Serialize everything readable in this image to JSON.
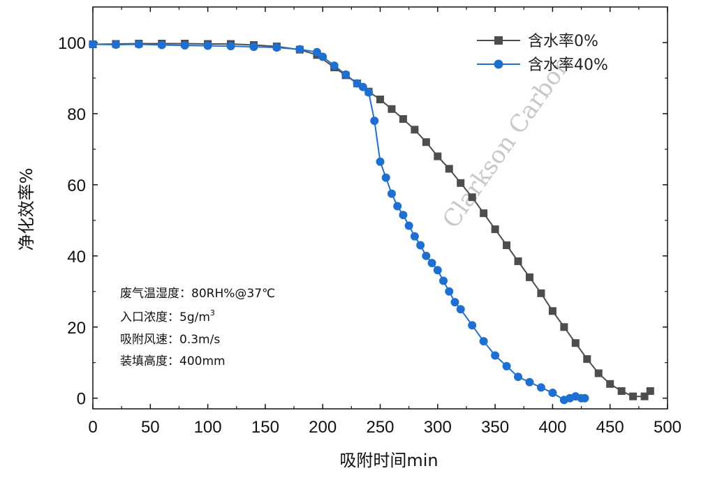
{
  "chart_data": {
    "type": "scatter",
    "title": "",
    "xlabel": "吸附时间min",
    "ylabel": "净化效率%",
    "xlim": [
      0,
      500
    ],
    "ylim": [
      -3,
      110
    ],
    "xticks": [
      "0",
      "50",
      "100",
      "150",
      "200",
      "250",
      "300",
      "350",
      "400",
      "450",
      "500"
    ],
    "yticks": [
      "0",
      "20",
      "40",
      "60",
      "80",
      "100"
    ],
    "grid": false,
    "legend_position": "top-right",
    "series": [
      {
        "name": "含水率0%",
        "color": "#4d4d4d",
        "marker": "square",
        "x": [
          0,
          20,
          40,
          60,
          80,
          100,
          120,
          140,
          160,
          180,
          195,
          210,
          220,
          230,
          240,
          250,
          260,
          270,
          280,
          290,
          300,
          310,
          320,
          330,
          340,
          350,
          360,
          370,
          380,
          390,
          400,
          410,
          420,
          430,
          440,
          450,
          460,
          470,
          480,
          485
        ],
        "y": [
          99.5,
          99.6,
          99.7,
          99.7,
          99.7,
          99.6,
          99.6,
          99.3,
          98.9,
          98.0,
          96.5,
          93.0,
          90.8,
          88.5,
          86.2,
          84.0,
          81.3,
          78.5,
          75.5,
          72.0,
          68.0,
          64.5,
          60.5,
          56.5,
          52.0,
          47.5,
          43.0,
          38.5,
          34.0,
          29.5,
          24.5,
          20.0,
          15.5,
          11.0,
          7.0,
          4.0,
          2.0,
          0.5,
          0.5,
          2.0
        ]
      },
      {
        "name": "含水率40%",
        "color": "#1f6fd1",
        "marker": "circle",
        "x": [
          0,
          20,
          40,
          60,
          80,
          100,
          120,
          140,
          160,
          180,
          195,
          200,
          210,
          220,
          230,
          235,
          240,
          245,
          250,
          255,
          260,
          265,
          270,
          275,
          280,
          285,
          290,
          295,
          300,
          305,
          310,
          315,
          320,
          330,
          340,
          350,
          360,
          370,
          380,
          390,
          400,
          410,
          415,
          420,
          425,
          428
        ],
        "y": [
          99.5,
          99.4,
          99.5,
          99.3,
          99.2,
          99.1,
          99.0,
          98.8,
          98.6,
          98.1,
          97.3,
          96.0,
          93.5,
          91.0,
          88.5,
          87.5,
          86.0,
          78.0,
          66.5,
          62.0,
          57.5,
          54.0,
          51.5,
          48.5,
          45.5,
          43.0,
          40.0,
          38.0,
          36.0,
          33.0,
          30.0,
          27.0,
          25.0,
          20.5,
          16.0,
          12.0,
          9.0,
          6.0,
          4.5,
          3.0,
          1.5,
          -0.5,
          0.0,
          0.5,
          0.0,
          0.0
        ]
      }
    ],
    "annotations": [
      {
        "text": "废气温湿度：80RH%@37℃"
      },
      {
        "text": "入口浓度：5g/m",
        "superscript": "3"
      },
      {
        "text": "吸附风速：0.3m/s"
      },
      {
        "text": "装填高度：400mm"
      }
    ],
    "watermark": "Clarkson Carbon"
  }
}
